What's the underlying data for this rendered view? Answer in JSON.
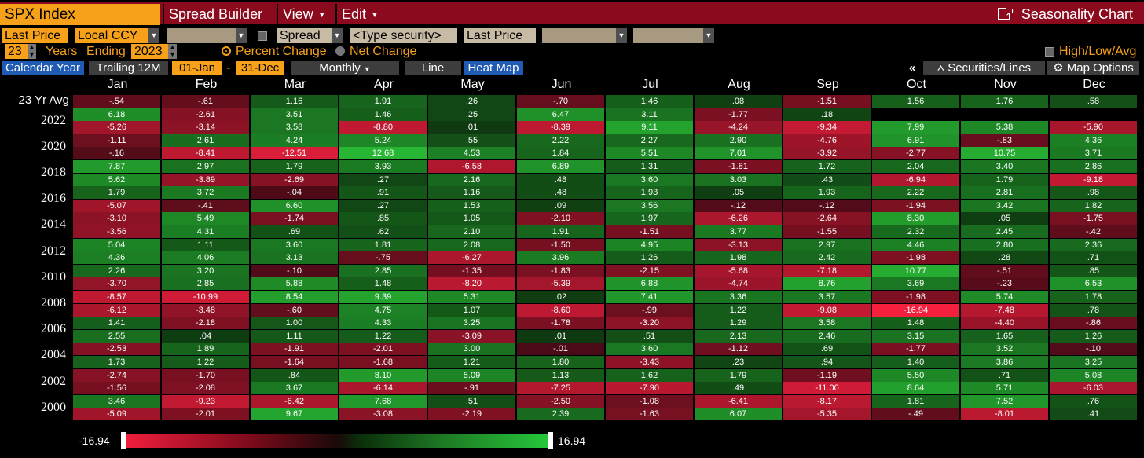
{
  "title_bar": {
    "security": "SPX Index",
    "menu": [
      "Spread Builder",
      "View",
      "Edit"
    ],
    "chart_title": "Seasonality Chart"
  },
  "controls": {
    "price_field": "Last Price",
    "currency": "Local CCY",
    "spread_label": "Spread",
    "type_security_placeholder": "<Type security>",
    "price_field_2": "Last Price",
    "years_value": "23",
    "years_label": "Years",
    "ending_label": "Ending",
    "ending_year": "2023",
    "percent_change": "Percent Change",
    "net_change": "Net Change",
    "high_low_avg": "High/Low/Avg"
  },
  "tabs": {
    "calendar_year": "Calendar Year",
    "trailing": "Trailing 12M",
    "from": "01-Jan",
    "dash": "-",
    "to": "31-Dec",
    "frequency": "Monthly",
    "line": "Line",
    "heat_map": "Heat Map",
    "collapse": "«",
    "securities_lines": "Securities/Lines",
    "map_options": "Map Options"
  },
  "colors": {
    "orange": "#f7a11a",
    "title_red": "#8b0a1e",
    "negative_max": "#f01e3c",
    "positive_max": "#26c83a"
  },
  "heatmap": {
    "months": [
      "Jan",
      "Feb",
      "Mar",
      "Apr",
      "May",
      "Jun",
      "Jul",
      "Aug",
      "Sep",
      "Oct",
      "Nov",
      "Dec"
    ],
    "avg_label": "23 Yr Avg",
    "year_labels": [
      "2022",
      "2020",
      "2018",
      "2016",
      "2014",
      "2012",
      "2010",
      "2008",
      "2006",
      "2004",
      "2002",
      "2000"
    ],
    "scale_min": "-16.94",
    "scale_max": "16.94",
    "rows": [
      [
        "-.54",
        "-.61",
        "1.16",
        "1.91",
        ".26",
        "-.70",
        "1.46",
        ".08",
        "-1.51",
        "1.56",
        "1.76",
        ".58"
      ],
      [
        "6.18",
        "-2.61",
        "3.51",
        "1.46",
        ".25",
        "6.47",
        "3.11",
        "-1.77",
        ".18",
        "",
        "",
        ""
      ],
      [
        "-5.26",
        "-3.14",
        "3.58",
        "-8.80",
        ".01",
        "-8.39",
        "9.11",
        "-4.24",
        "-9.34",
        "7.99",
        "5.38",
        "-5.90"
      ],
      [
        "-1.11",
        "2.61",
        "4.24",
        "5.24",
        ".55",
        "2.22",
        "2.27",
        "2.90",
        "-4.76",
        "6.91",
        "-.83",
        "4.36"
      ],
      [
        "-.16",
        "-8.41",
        "-12.51",
        "12.68",
        "4.53",
        "1.84",
        "5.51",
        "7.01",
        "-3.92",
        "-2.77",
        "10.75",
        "3.71"
      ],
      [
        "7.87",
        "2.97",
        "1.79",
        "3.93",
        "-6.58",
        "6.89",
        "1.31",
        "-1.81",
        "1.72",
        "2.04",
        "3.40",
        "2.86"
      ],
      [
        "5.62",
        "-3.89",
        "-2.69",
        ".27",
        "2.16",
        ".48",
        "3.60",
        "3.03",
        ".43",
        "-6.94",
        "1.79",
        "-9.18"
      ],
      [
        "1.79",
        "3.72",
        "-.04",
        ".91",
        "1.16",
        ".48",
        "1.93",
        ".05",
        "1.93",
        "2.22",
        "2.81",
        ".98"
      ],
      [
        "-5.07",
        "-.41",
        "6.60",
        ".27",
        "1.53",
        ".09",
        "3.56",
        "-.12",
        "-.12",
        "-1.94",
        "3.42",
        "1.82"
      ],
      [
        "-3.10",
        "5.49",
        "-1.74",
        ".85",
        "1.05",
        "-2.10",
        "1.97",
        "-6.26",
        "-2.64",
        "8.30",
        ".05",
        "-1.75"
      ],
      [
        "-3.56",
        "4.31",
        ".69",
        ".62",
        "2.10",
        "1.91",
        "-1.51",
        "3.77",
        "-1.55",
        "2.32",
        "2.45",
        "-.42"
      ],
      [
        "5.04",
        "1.11",
        "3.60",
        "1.81",
        "2.08",
        "-1.50",
        "4.95",
        "-3.13",
        "2.97",
        "4.46",
        "2.80",
        "2.36"
      ],
      [
        "4.36",
        "4.06",
        "3.13",
        "-.75",
        "-6.27",
        "3.96",
        "1.26",
        "1.98",
        "2.42",
        "-1.98",
        ".28",
        ".71"
      ],
      [
        "2.26",
        "3.20",
        "-.10",
        "2.85",
        "-1.35",
        "-1.83",
        "-2.15",
        "-5.68",
        "-7.18",
        "10.77",
        "-.51",
        ".85"
      ],
      [
        "-3.70",
        "2.85",
        "5.88",
        "1.48",
        "-8.20",
        "-5.39",
        "6.88",
        "-4.74",
        "8.76",
        "3.69",
        "-.23",
        "6.53"
      ],
      [
        "-8.57",
        "-10.99",
        "8.54",
        "9.39",
        "5.31",
        ".02",
        "7.41",
        "3.36",
        "3.57",
        "-1.98",
        "5.74",
        "1.78"
      ],
      [
        "-6.12",
        "-3.48",
        "-.60",
        "4.75",
        "1.07",
        "-8.60",
        "-.99",
        "1.22",
        "-9.08",
        "-16.94",
        "-7.48",
        ".78"
      ],
      [
        "1.41",
        "-2.18",
        "1.00",
        "4.33",
        "3.25",
        "-1.78",
        "-3.20",
        "1.29",
        "3.58",
        "1.48",
        "-4.40",
        "-.86"
      ],
      [
        "2.55",
        ".04",
        "1.11",
        "1.22",
        "-3.09",
        ".01",
        ".51",
        "2.13",
        "2.46",
        "3.15",
        "1.65",
        "1.26"
      ],
      [
        "-2.53",
        "1.89",
        "-1.91",
        "-2.01",
        "3.00",
        "-.01",
        "3.60",
        "-1.12",
        ".69",
        "-1.77",
        "3.52",
        "-.10"
      ],
      [
        "1.73",
        "1.22",
        "-1.64",
        "-1.68",
        "1.21",
        "1.80",
        "-3.43",
        ".23",
        ".94",
        "1.40",
        "3.86",
        "3.25"
      ],
      [
        "-2.74",
        "-1.70",
        ".84",
        "8.10",
        "5.09",
        "1.13",
        "1.62",
        "1.79",
        "-1.19",
        "5.50",
        ".71",
        "5.08"
      ],
      [
        "-1.56",
        "-2.08",
        "3.67",
        "-6.14",
        "-.91",
        "-7.25",
        "-7.90",
        ".49",
        "-11.00",
        "8.64",
        "5.71",
        "-6.03"
      ],
      [
        "3.46",
        "-9.23",
        "-6.42",
        "7.68",
        ".51",
        "-2.50",
        "-1.08",
        "-6.41",
        "-8.17",
        "1.81",
        "7.52",
        ".76"
      ],
      [
        "-5.09",
        "-2.01",
        "9.67",
        "-3.08",
        "-2.19",
        "2.39",
        "-1.63",
        "6.07",
        "-5.35",
        "-.49",
        "-8.01",
        ".41"
      ]
    ]
  }
}
